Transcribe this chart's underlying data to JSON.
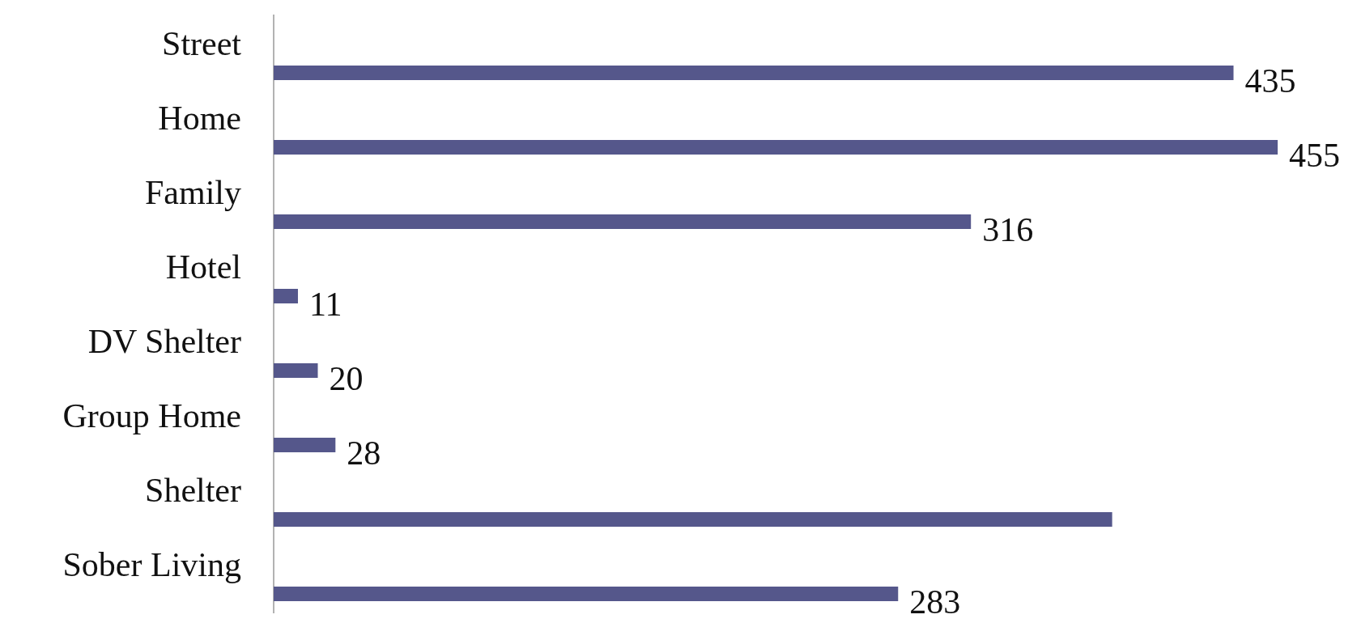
{
  "chart_data": {
    "type": "bar",
    "orientation": "horizontal",
    "categories": [
      "Street",
      "Home",
      "Family",
      "Hotel",
      "DV Shelter",
      "Group Home",
      "Shelter",
      "Sober Living"
    ],
    "values": [
      435,
      455,
      316,
      11,
      20,
      28,
      380,
      283
    ],
    "value_labels": [
      "435",
      "455",
      "316",
      "11",
      "20",
      "28",
      null,
      "283"
    ],
    "color": "#55578b",
    "xlim": [
      0,
      455
    ],
    "tick_labels": "y"
  }
}
